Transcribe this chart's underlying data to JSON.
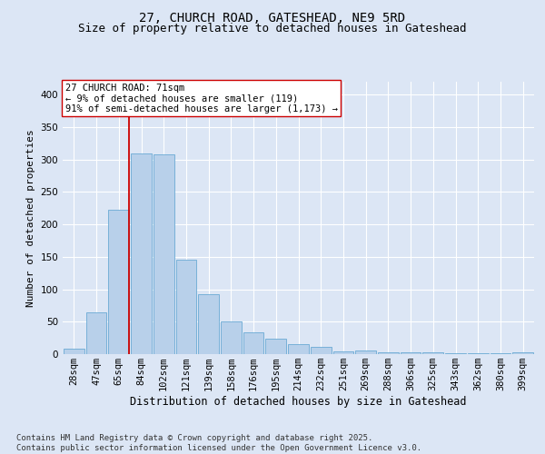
{
  "title1": "27, CHURCH ROAD, GATESHEAD, NE9 5RD",
  "title2": "Size of property relative to detached houses in Gateshead",
  "xlabel": "Distribution of detached houses by size in Gateshead",
  "ylabel": "Number of detached properties",
  "categories": [
    "28sqm",
    "47sqm",
    "65sqm",
    "84sqm",
    "102sqm",
    "121sqm",
    "139sqm",
    "158sqm",
    "176sqm",
    "195sqm",
    "214sqm",
    "232sqm",
    "251sqm",
    "269sqm",
    "288sqm",
    "306sqm",
    "325sqm",
    "343sqm",
    "362sqm",
    "380sqm",
    "399sqm"
  ],
  "bar_heights": [
    8,
    65,
    222,
    310,
    308,
    145,
    92,
    50,
    33,
    24,
    15,
    11,
    4,
    5,
    3,
    3,
    3,
    2,
    2,
    2,
    3
  ],
  "bar_color": "#b8d0ea",
  "bar_edge_color": "#6aaad4",
  "vline_color": "#cc0000",
  "annotation_text": "27 CHURCH ROAD: 71sqm\n← 9% of detached houses are smaller (119)\n91% of semi-detached houses are larger (1,173) →",
  "annotation_box_facecolor": "#ffffff",
  "annotation_box_edgecolor": "#cc0000",
  "ylim": [
    0,
    420
  ],
  "yticks": [
    0,
    50,
    100,
    150,
    200,
    250,
    300,
    350,
    400
  ],
  "background_color": "#dce6f5",
  "plot_bg_color": "#dce6f5",
  "footer_text": "Contains HM Land Registry data © Crown copyright and database right 2025.\nContains public sector information licensed under the Open Government Licence v3.0.",
  "title1_fontsize": 10,
  "title2_fontsize": 9,
  "xlabel_fontsize": 8.5,
  "ylabel_fontsize": 8,
  "tick_fontsize": 7.5,
  "annotation_fontsize": 7.5,
  "footer_fontsize": 6.5
}
